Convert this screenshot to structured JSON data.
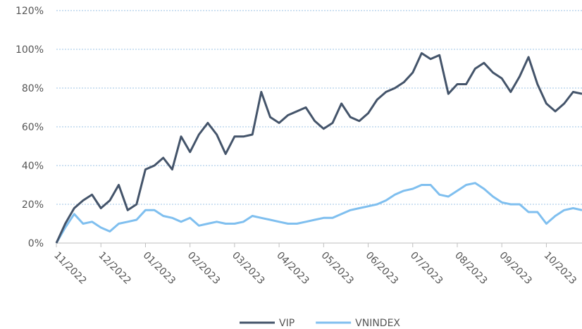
{
  "chart_data": {
    "type": "line",
    "categories": [
      "11/2022",
      null,
      null,
      null,
      null,
      "12/2022",
      null,
      null,
      null,
      null,
      "01/2023",
      null,
      null,
      null,
      null,
      "02/2023",
      null,
      null,
      null,
      null,
      "03/2023",
      null,
      null,
      null,
      null,
      "04/2023",
      null,
      null,
      null,
      null,
      "05/2023",
      null,
      null,
      null,
      null,
      "06/2023",
      null,
      null,
      null,
      null,
      "07/2023",
      null,
      null,
      null,
      null,
      "08/2023",
      null,
      null,
      null,
      null,
      "09/2023",
      null,
      null,
      null,
      null,
      "10/2023",
      null,
      null,
      null,
      null
    ],
    "series": [
      {
        "name": "VIP",
        "color": "#44546a",
        "values": [
          0,
          10,
          18,
          22,
          25,
          18,
          22,
          30,
          17,
          20,
          38,
          40,
          44,
          38,
          55,
          47,
          56,
          62,
          56,
          46,
          55,
          55,
          56,
          78,
          65,
          62,
          66,
          68,
          70,
          63,
          59,
          62,
          72,
          65,
          63,
          67,
          74,
          78,
          80,
          83,
          88,
          98,
          95,
          97,
          77,
          82,
          82,
          90,
          93,
          88,
          85,
          78,
          86,
          96,
          82,
          72,
          68,
          72,
          78,
          77
        ]
      },
      {
        "name": "VNINDEX",
        "color": "#7fbfef",
        "values": [
          0,
          8,
          15,
          10,
          11,
          8,
          6,
          10,
          11,
          12,
          17,
          17,
          14,
          13,
          11,
          13,
          9,
          10,
          11,
          10,
          10,
          11,
          14,
          13,
          12,
          11,
          10,
          10,
          11,
          12,
          13,
          13,
          15,
          17,
          18,
          19,
          20,
          22,
          25,
          27,
          28,
          30,
          30,
          25,
          24,
          27,
          30,
          31,
          28,
          24,
          21,
          20,
          20,
          16,
          16,
          10,
          14,
          17,
          18,
          17
        ]
      }
    ],
    "ylim": [
      0,
      120
    ],
    "yticks": [
      {
        "value": 0,
        "label": "0%"
      },
      {
        "value": 20,
        "label": "20%"
      },
      {
        "value": 40,
        "label": "40%"
      },
      {
        "value": 60,
        "label": "60%"
      },
      {
        "value": 80,
        "label": "80%"
      },
      {
        "value": 100,
        "label": "100%"
      },
      {
        "value": 120,
        "label": "120%"
      }
    ],
    "grid": true,
    "legend": "bottom"
  }
}
